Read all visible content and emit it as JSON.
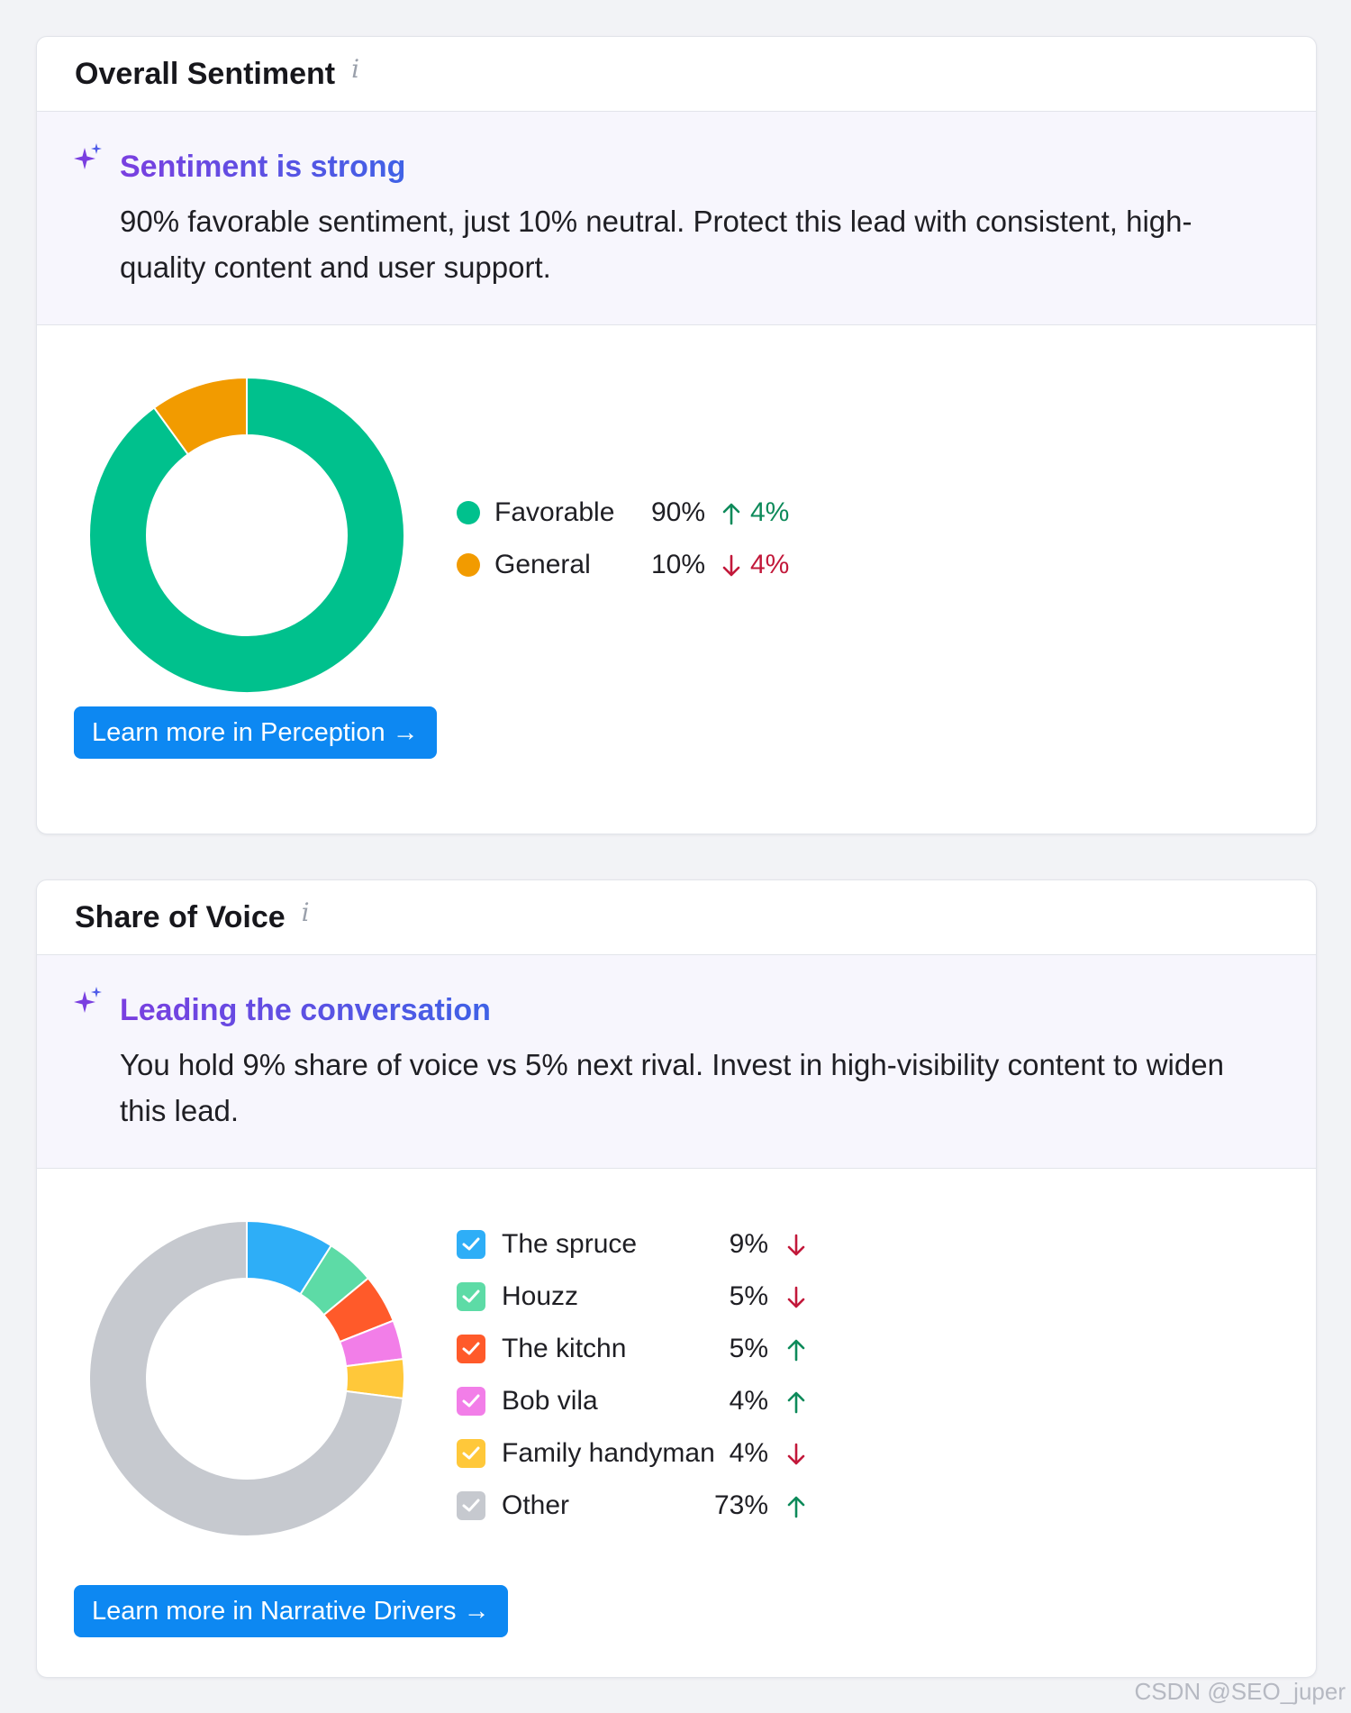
{
  "sentiment": {
    "title": "Overall Sentiment",
    "info_glyph": "i",
    "insight_title": "Sentiment is strong",
    "insight_text": "90% favorable sentiment, just 10% neutral. Protect this lead with consistent, high-quality content and user support.",
    "cta_label": "Learn more in Perception →",
    "legend": [
      {
        "label": "Favorable",
        "value": "90%",
        "change": "4%",
        "direction": "up",
        "color": "#00c18d"
      },
      {
        "label": "General",
        "value": "10%",
        "change": "4%",
        "direction": "down",
        "color": "#f29b00"
      }
    ]
  },
  "voice": {
    "title": "Share of Voice",
    "info_glyph": "i",
    "insight_title": "Leading the conversation",
    "insight_text": "You hold 9% share of voice vs 5% next rival. Invest in high-visibility content to widen this lead.",
    "cta_label": "Learn more in Narrative Drivers →",
    "legend": [
      {
        "label": "The spruce",
        "value": "9%",
        "direction": "down",
        "color": "#2eaef7"
      },
      {
        "label": "Houzz",
        "value": "5%",
        "direction": "down",
        "color": "#5ddba6"
      },
      {
        "label": "The kitchn",
        "value": "5%",
        "direction": "up",
        "color": "#ff5a2a"
      },
      {
        "label": "Bob vila",
        "value": "4%",
        "direction": "up",
        "color": "#f27ee8"
      },
      {
        "label": "Family handyman",
        "value": "4%",
        "direction": "down",
        "color": "#ffc83a"
      },
      {
        "label": "Other",
        "value": "73%",
        "direction": "up",
        "color": "#c6c9cf"
      }
    ]
  },
  "chart_data": [
    {
      "type": "pie",
      "categories": [
        "Favorable",
        "General"
      ],
      "values": [
        90,
        10
      ],
      "colors": [
        "#00c18d",
        "#f29b00"
      ]
    },
    {
      "type": "pie",
      "categories": [
        "The spruce",
        "Houzz",
        "The kitchn",
        "Bob vila",
        "Family handyman",
        "Other"
      ],
      "values": [
        9,
        5,
        5,
        4,
        4,
        73
      ],
      "colors": [
        "#2eaef7",
        "#5ddba6",
        "#ff5a2a",
        "#f27ee8",
        "#ffc83a",
        "#c6c9cf"
      ]
    }
  ],
  "watermark": "CSDN @SEO_juper"
}
